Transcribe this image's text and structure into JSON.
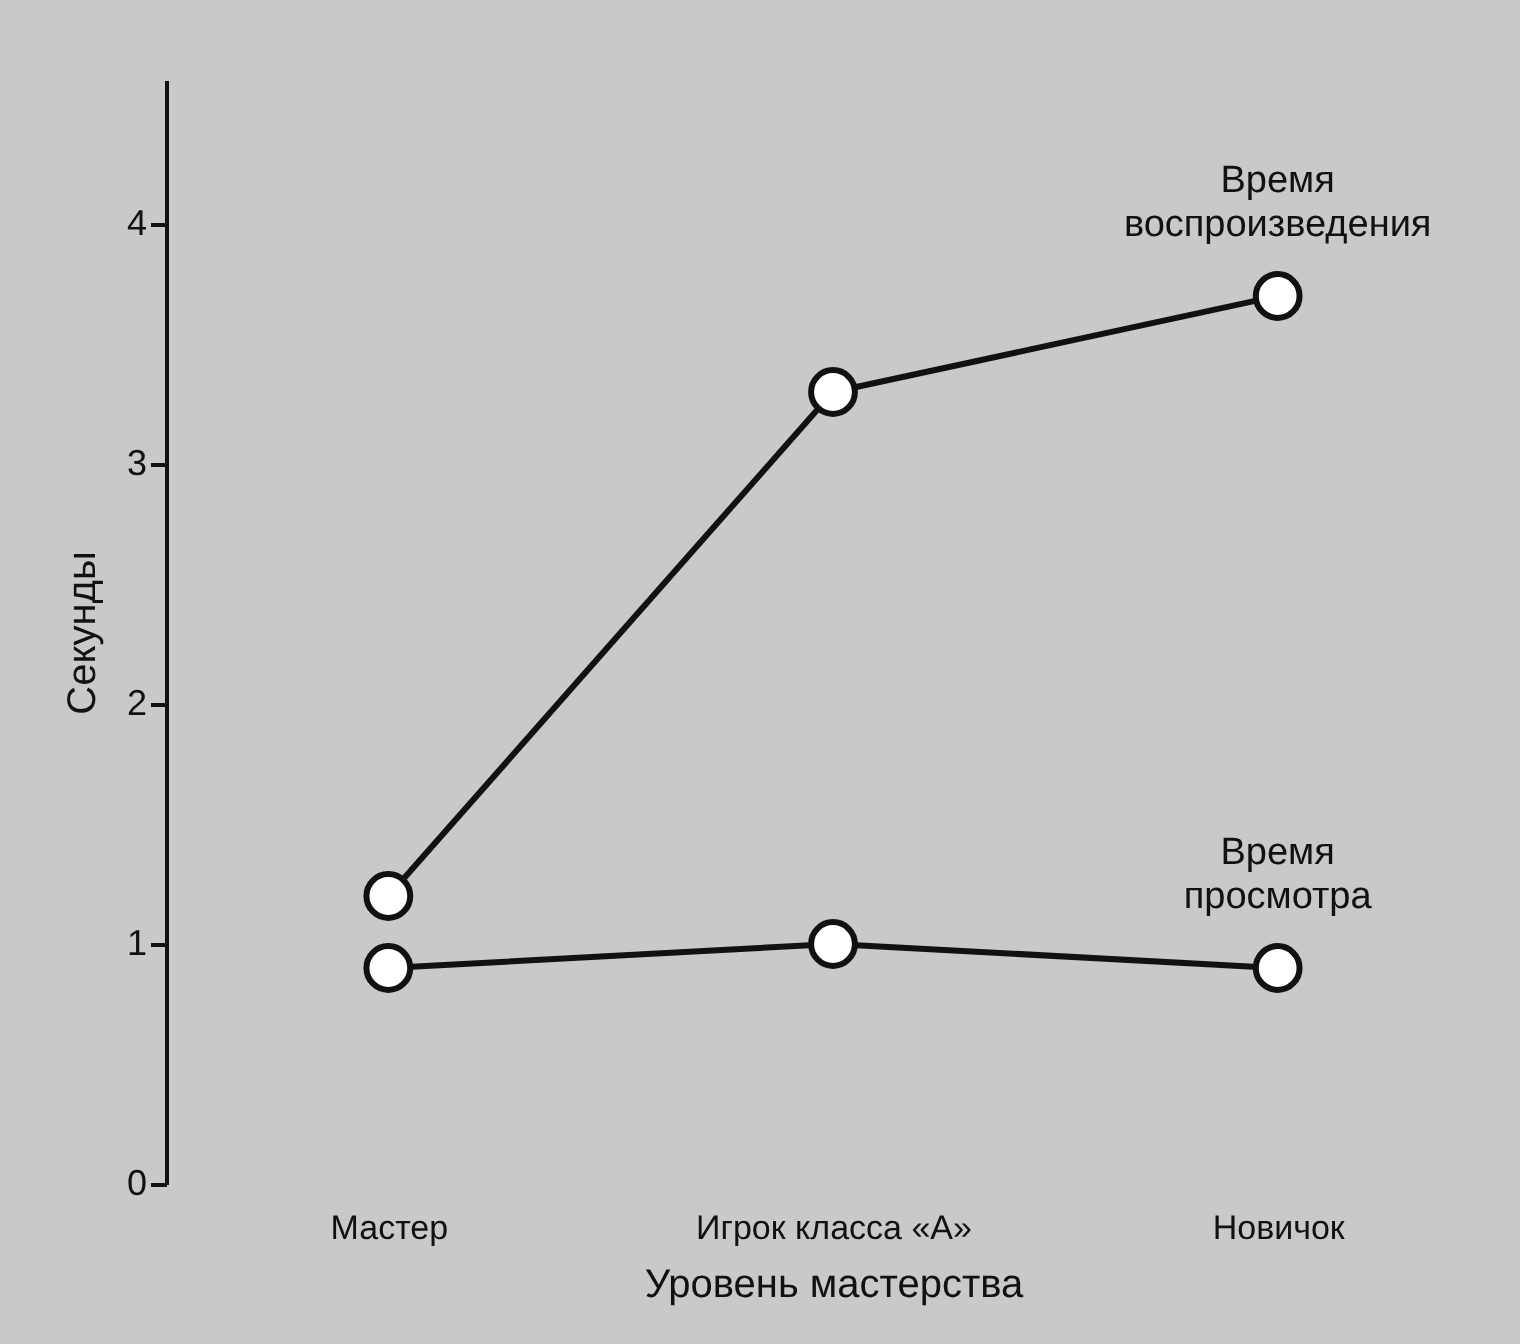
{
  "chart_data": {
    "type": "line",
    "xlabel": "Уровень мастерства",
    "ylabel": "Секунды",
    "categories": [
      "Мастер",
      "Игрок класса «А»",
      "Новичок"
    ],
    "series": [
      {
        "name": "Время воспроизведения",
        "color": "#111111",
        "values": [
          1.2,
          3.3,
          3.7
        ]
      },
      {
        "name": "Время просмотра",
        "color": "#111111",
        "values": [
          0.9,
          1.0,
          0.9
        ]
      }
    ],
    "ylim": [
      0,
      4.6
    ],
    "yticks": [
      0,
      1,
      2,
      3,
      4
    ],
    "grid": false,
    "legend": false,
    "marker": "circle",
    "line_style": "solid"
  }
}
